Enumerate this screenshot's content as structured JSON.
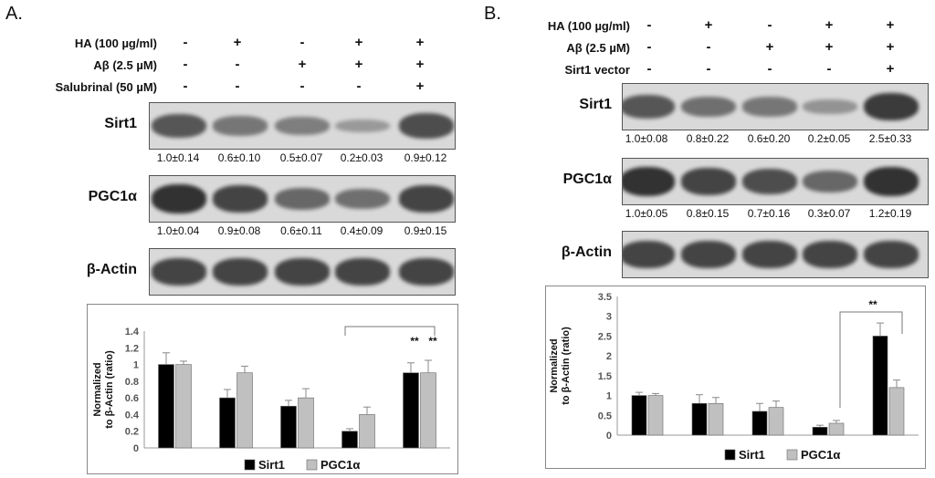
{
  "panelA": {
    "letter": "A.",
    "conditions": [
      {
        "label": "HA (100 µg/ml)",
        "signs": [
          "-",
          "+",
          "-",
          "+",
          "+"
        ]
      },
      {
        "label": "Aβ (2.5 µM)",
        "signs": [
          "-",
          "-",
          "+",
          "+",
          "+"
        ]
      },
      {
        "label": "Salubrinal (50 µM)",
        "signs": [
          "-",
          "-",
          "-",
          "-",
          "+"
        ]
      }
    ],
    "blots": [
      {
        "label": "Sirt1",
        "quant": [
          "1.0±0.14",
          "0.6±0.10",
          "0.5±0.07",
          "0.2±0.03",
          "0.9±0.12"
        ],
        "intensity": [
          0.75,
          0.55,
          0.5,
          0.3,
          0.8
        ]
      },
      {
        "label": "PGC1α",
        "quant": [
          "1.0±0.04",
          "0.9±0.08",
          "0.6±0.11",
          "0.4±0.09",
          "0.9±0.15"
        ],
        "intensity": [
          0.95,
          0.85,
          0.65,
          0.6,
          0.85
        ]
      },
      {
        "label": "β-Actin",
        "quant": [],
        "intensity": [
          0.85,
          0.85,
          0.85,
          0.85,
          0.85
        ]
      }
    ]
  },
  "panelB": {
    "letter": "B.",
    "conditions": [
      {
        "label": "HA (100 µg/ml)",
        "signs": [
          "-",
          "+",
          "-",
          "+",
          "+"
        ]
      },
      {
        "label": "Aβ (2.5 µM)",
        "signs": [
          "-",
          "-",
          "+",
          "+",
          "+"
        ]
      },
      {
        "label": "Sirt1 vector",
        "signs": [
          "-",
          "-",
          "-",
          "-",
          "+"
        ]
      }
    ],
    "blots": [
      {
        "label": "Sirt1",
        "quant": [
          "1.0±0.08",
          "0.8±0.22",
          "0.6±0.20",
          "0.2±0.05",
          "2.5±0.33"
        ],
        "intensity": [
          0.75,
          0.6,
          0.55,
          0.35,
          0.9
        ]
      },
      {
        "label": "PGC1α",
        "quant": [
          "1.0±0.05",
          "0.8±0.15",
          "0.7±0.16",
          "0.3±0.07",
          "1.2±0.19"
        ],
        "intensity": [
          0.95,
          0.85,
          0.8,
          0.65,
          0.95
        ]
      },
      {
        "label": "β-Actin",
        "quant": [],
        "intensity": [
          0.85,
          0.85,
          0.85,
          0.85,
          0.85
        ]
      }
    ]
  },
  "chart_data": [
    {
      "type": "bar",
      "panel": "A",
      "ylabel": "Normalized\nto β-Actin (ratio)",
      "ylim": [
        0,
        1.4
      ],
      "yticks": [
        "0",
        "0.2",
        "0.4",
        "0.6",
        "0.8",
        "1",
        "1.2",
        "1.4"
      ],
      "series": [
        {
          "name": "Sirt1",
          "color": "#000000",
          "values": [
            1.0,
            0.6,
            0.5,
            0.2,
            0.9
          ],
          "errors": [
            0.14,
            0.1,
            0.07,
            0.03,
            0.12
          ]
        },
        {
          "name": "PGC1α",
          "color": "#c0c0c0",
          "values": [
            1.0,
            0.9,
            0.6,
            0.4,
            0.9
          ],
          "errors": [
            0.04,
            0.08,
            0.11,
            0.09,
            0.15
          ]
        }
      ],
      "annotations": {
        "significance": [
          "**",
          "**"
        ]
      },
      "legend": "bottom"
    },
    {
      "type": "bar",
      "panel": "B",
      "ylabel": "Normalized\nto β-Actin (ratio)",
      "ylim": [
        0,
        3.5
      ],
      "yticks": [
        "0",
        "0.5",
        "1",
        "1.5",
        "2",
        "2.5",
        "3",
        "3.5"
      ],
      "series": [
        {
          "name": "Sirt1",
          "color": "#000000",
          "values": [
            1.0,
            0.8,
            0.6,
            0.2,
            2.5
          ],
          "errors": [
            0.08,
            0.22,
            0.2,
            0.05,
            0.33
          ]
        },
        {
          "name": "PGC1α",
          "color": "#c0c0c0",
          "values": [
            1.0,
            0.8,
            0.7,
            0.3,
            1.2
          ],
          "errors": [
            0.05,
            0.15,
            0.16,
            0.07,
            0.19
          ]
        }
      ],
      "annotations": {
        "significance": [
          "**"
        ]
      },
      "legend": "bottom"
    }
  ]
}
